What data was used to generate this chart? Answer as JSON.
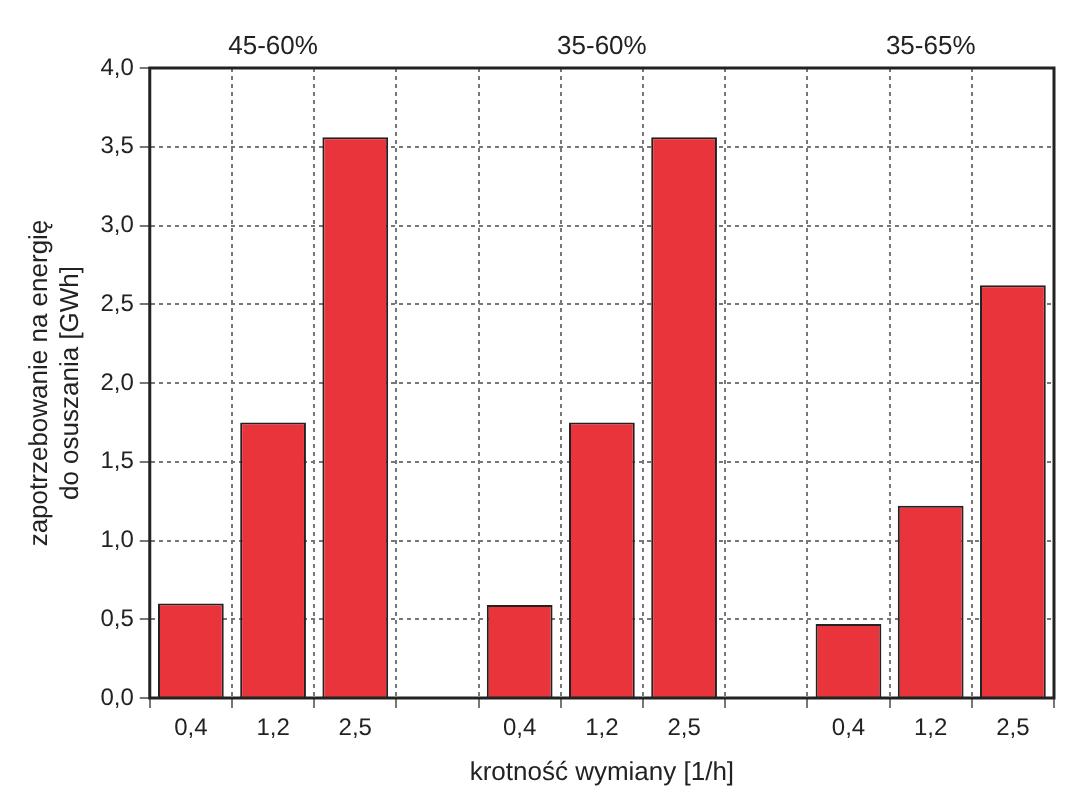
{
  "chart_data": {
    "type": "bar",
    "xlabel": "krotność wymiany [1/h]",
    "ylabel": "zapotrzebowanie na energię\ndo osuszania [GWh]",
    "categories": [
      "0,4",
      "1,2",
      "2,5",
      null,
      "0,4",
      "1,2",
      "2,5",
      null,
      "0,4",
      "1,2",
      "2,5"
    ],
    "values": [
      0.6,
      1.75,
      3.56,
      null,
      0.59,
      1.75,
      3.56,
      null,
      0.47,
      1.22,
      2.62
    ],
    "color": "#e8343a",
    "ylim": [
      0,
      4
    ],
    "yticks": [
      {
        "value": 0,
        "label": "0,0"
      },
      {
        "value": 0.5,
        "label": "0,5"
      },
      {
        "value": 1,
        "label": "1,0"
      },
      {
        "value": 1.5,
        "label": "1,5"
      },
      {
        "value": 2,
        "label": "2,0"
      },
      {
        "value": 2.5,
        "label": "2,5"
      },
      {
        "value": 3,
        "label": "3,0"
      },
      {
        "value": 3.5,
        "label": "3,5"
      },
      {
        "value": 4,
        "label": "4,0"
      }
    ],
    "grid": true,
    "legend": false,
    "annotations": [
      "45-60%",
      "35-60%",
      "35-65%"
    ]
  }
}
